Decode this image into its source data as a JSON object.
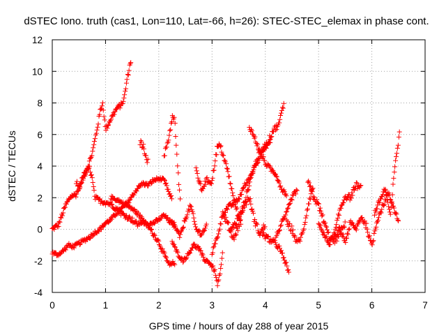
{
  "chart_data": {
    "type": "scatter",
    "title": "dSTEC Iono. truth (cas1, Lon=110, Lat=-66, h=26): STEC-STEC_elemax in phase cont.",
    "xlabel": "GPS time / hours of day 288 of year 2015",
    "ylabel": "dSTEC  / TECUs",
    "xlim": [
      0,
      7
    ],
    "ylim": [
      -4,
      12
    ],
    "xticks": [
      0,
      1,
      2,
      3,
      4,
      5,
      6,
      7
    ],
    "yticks": [
      -4,
      -2,
      0,
      2,
      4,
      6,
      8,
      10,
      12
    ],
    "grid": true,
    "marker": "+",
    "color": "#ff0000",
    "tracks": [
      {
        "start": 0.0,
        "end": 1.48,
        "noise": 0.15,
        "knots": [
          [
            0.0,
            0.0
          ],
          [
            0.12,
            0.3
          ],
          [
            0.25,
            1.5
          ],
          [
            0.35,
            2.1
          ],
          [
            0.45,
            2.2
          ],
          [
            0.55,
            3.0
          ],
          [
            0.65,
            3.8
          ],
          [
            0.75,
            4.8
          ],
          [
            0.85,
            6.5
          ],
          [
            0.9,
            7.5
          ],
          [
            0.95,
            8.0
          ],
          [
            1.0,
            6.3
          ],
          [
            1.1,
            7.0
          ],
          [
            1.2,
            7.6
          ],
          [
            1.3,
            7.9
          ],
          [
            1.35,
            8.3
          ],
          [
            1.4,
            9.4
          ],
          [
            1.45,
            10.3
          ],
          [
            1.48,
            10.7
          ]
        ]
      },
      {
        "start": 0.0,
        "end": 2.25,
        "noise": 0.12,
        "knots": [
          [
            0.0,
            -1.5
          ],
          [
            0.1,
            -1.6
          ],
          [
            0.2,
            -1.4
          ],
          [
            0.3,
            -1.0
          ],
          [
            0.4,
            -1.1
          ],
          [
            0.5,
            -0.9
          ],
          [
            0.6,
            -0.7
          ],
          [
            0.7,
            -0.5
          ],
          [
            0.8,
            -0.2
          ],
          [
            0.9,
            0.0
          ],
          [
            1.0,
            0.4
          ],
          [
            1.1,
            0.6
          ],
          [
            1.2,
            1.0
          ],
          [
            1.3,
            1.3
          ],
          [
            1.4,
            1.6
          ],
          [
            1.5,
            2.1
          ],
          [
            1.6,
            2.6
          ],
          [
            1.7,
            2.9
          ],
          [
            1.8,
            2.8
          ],
          [
            1.9,
            3.1
          ],
          [
            2.0,
            3.2
          ],
          [
            2.1,
            3.1
          ],
          [
            2.15,
            2.7
          ],
          [
            2.2,
            2.2
          ],
          [
            2.25,
            1.9
          ]
        ]
      },
      {
        "start": 0.45,
        "end": 2.3,
        "noise": 0.15,
        "knots": [
          [
            0.45,
            3.0
          ],
          [
            0.5,
            2.6
          ],
          [
            0.6,
            3.5
          ],
          [
            0.7,
            3.9
          ],
          [
            0.75,
            3.2
          ],
          [
            0.8,
            2.0
          ],
          [
            0.9,
            1.8
          ],
          [
            1.0,
            1.7
          ],
          [
            1.1,
            1.6
          ],
          [
            1.2,
            1.3
          ],
          [
            1.3,
            1.0
          ],
          [
            1.4,
            0.8
          ],
          [
            1.5,
            0.6
          ],
          [
            1.6,
            0.3
          ],
          [
            1.7,
            0.5
          ],
          [
            1.8,
            0.2
          ],
          [
            1.9,
            -0.3
          ],
          [
            2.0,
            -0.8
          ],
          [
            2.1,
            -1.6
          ],
          [
            2.2,
            -2.3
          ],
          [
            2.3,
            -2.1
          ]
        ]
      },
      {
        "start": 1.1,
        "end": 2.3,
        "noise": 0.12,
        "knots": [
          [
            1.1,
            2.0
          ],
          [
            1.2,
            1.9
          ],
          [
            1.3,
            1.7
          ],
          [
            1.4,
            1.5
          ],
          [
            1.5,
            1.3
          ],
          [
            1.6,
            1.0
          ],
          [
            1.7,
            0.6
          ],
          [
            1.8,
            0.3
          ],
          [
            1.9,
            0.4
          ],
          [
            2.0,
            0.6
          ],
          [
            2.1,
            0.9
          ],
          [
            2.2,
            0.5
          ],
          [
            2.3,
            0.3
          ]
        ]
      },
      {
        "start": 1.65,
        "end": 1.8,
        "noise": 0.2,
        "knots": [
          [
            1.65,
            5.5
          ],
          [
            1.7,
            5.3
          ],
          [
            1.75,
            4.8
          ],
          [
            1.8,
            4.2
          ]
        ]
      },
      {
        "start": 2.1,
        "end": 2.4,
        "noise": 0.2,
        "knots": [
          [
            2.1,
            4.6
          ],
          [
            2.2,
            6.0
          ],
          [
            2.25,
            7.1
          ],
          [
            2.3,
            6.9
          ],
          [
            2.35,
            4.0
          ],
          [
            2.4,
            2.0
          ]
        ]
      },
      {
        "start": 2.25,
        "end": 3.2,
        "noise": 0.12,
        "knots": [
          [
            2.25,
            -0.8
          ],
          [
            2.35,
            -1.5
          ],
          [
            2.45,
            -2.0
          ],
          [
            2.55,
            -1.6
          ],
          [
            2.65,
            -1.0
          ],
          [
            2.75,
            -1.2
          ],
          [
            2.85,
            -1.9
          ],
          [
            2.95,
            -2.1
          ],
          [
            3.05,
            -2.6
          ],
          [
            3.1,
            -3.5
          ],
          [
            3.15,
            -2.9
          ],
          [
            3.2,
            -1.5
          ]
        ]
      },
      {
        "start": 2.2,
        "end": 2.9,
        "noise": 0.15,
        "knots": [
          [
            2.2,
            0.5
          ],
          [
            2.3,
            0.2
          ],
          [
            2.4,
            -0.5
          ],
          [
            2.5,
            0.7
          ],
          [
            2.6,
            1.5
          ],
          [
            2.7,
            0.0
          ],
          [
            2.8,
            -0.3
          ],
          [
            2.9,
            0.2
          ]
        ]
      },
      {
        "start": 2.7,
        "end": 3.55,
        "noise": 0.18,
        "knots": [
          [
            2.7,
            3.8
          ],
          [
            2.8,
            2.5
          ],
          [
            2.9,
            3.1
          ],
          [
            3.0,
            3.0
          ],
          [
            3.05,
            4.2
          ],
          [
            3.1,
            5.2
          ],
          [
            3.15,
            5.3
          ],
          [
            3.2,
            4.8
          ],
          [
            3.3,
            3.6
          ],
          [
            3.4,
            2.0
          ],
          [
            3.5,
            0.8
          ],
          [
            3.55,
            0.4
          ]
        ]
      },
      {
        "start": 3.0,
        "end": 4.1,
        "noise": 0.15,
        "knots": [
          [
            3.0,
            -1.5
          ],
          [
            3.1,
            -0.5
          ],
          [
            3.2,
            0.9
          ],
          [
            3.3,
            1.4
          ],
          [
            3.4,
            1.6
          ],
          [
            3.5,
            1.9
          ],
          [
            3.6,
            2.7
          ],
          [
            3.7,
            3.2
          ],
          [
            3.8,
            4.0
          ],
          [
            3.9,
            4.6
          ],
          [
            4.0,
            5.2
          ],
          [
            4.1,
            5.6
          ]
        ]
      },
      {
        "start": 3.35,
        "end": 4.35,
        "noise": 0.18,
        "knots": [
          [
            3.35,
            0.0
          ],
          [
            3.45,
            0.4
          ],
          [
            3.55,
            1.1
          ],
          [
            3.65,
            2.2
          ],
          [
            3.75,
            3.5
          ],
          [
            3.85,
            4.5
          ],
          [
            3.95,
            5.1
          ],
          [
            4.05,
            5.5
          ],
          [
            4.15,
            6.3
          ],
          [
            4.25,
            6.6
          ],
          [
            4.3,
            7.3
          ],
          [
            4.35,
            8.0
          ]
        ]
      },
      {
        "start": 3.7,
        "end": 4.4,
        "noise": 0.15,
        "knots": [
          [
            3.7,
            6.5
          ],
          [
            3.8,
            5.8
          ],
          [
            3.9,
            4.9
          ],
          [
            4.0,
            4.2
          ],
          [
            4.1,
            3.8
          ],
          [
            4.2,
            3.5
          ],
          [
            4.3,
            2.6
          ],
          [
            4.4,
            2.2
          ]
        ]
      },
      {
        "start": 3.2,
        "end": 4.0,
        "noise": 0.2,
        "knots": [
          [
            3.2,
            1.0
          ],
          [
            3.3,
            0.3
          ],
          [
            3.4,
            -0.6
          ],
          [
            3.5,
            0.2
          ],
          [
            3.6,
            1.5
          ],
          [
            3.7,
            2.0
          ],
          [
            3.8,
            0.5
          ],
          [
            3.9,
            -0.3
          ],
          [
            4.0,
            0.3
          ]
        ]
      },
      {
        "start": 3.95,
        "end": 4.45,
        "noise": 0.18,
        "knots": [
          [
            3.95,
            -0.3
          ],
          [
            4.05,
            -0.6
          ],
          [
            4.15,
            -0.8
          ],
          [
            4.25,
            -1.1
          ],
          [
            4.35,
            -1.9
          ],
          [
            4.45,
            -2.7
          ]
        ]
      },
      {
        "start": 4.4,
        "end": 4.9,
        "noise": 0.2,
        "knots": [
          [
            4.4,
            0.4
          ],
          [
            4.5,
            0.0
          ],
          [
            4.6,
            -0.9
          ],
          [
            4.7,
            -0.3
          ],
          [
            4.8,
            1.5
          ],
          [
            4.9,
            2.8
          ]
        ]
      },
      {
        "start": 4.2,
        "end": 4.6,
        "noise": 0.15,
        "knots": [
          [
            4.2,
            -0.5
          ],
          [
            4.3,
            0.3
          ],
          [
            4.4,
            1.0
          ],
          [
            4.5,
            2.0
          ],
          [
            4.6,
            2.5
          ]
        ]
      },
      {
        "start": 4.8,
        "end": 5.5,
        "noise": 0.2,
        "knots": [
          [
            4.8,
            3.0
          ],
          [
            4.9,
            2.1
          ],
          [
            5.0,
            1.5
          ],
          [
            5.1,
            0.5
          ],
          [
            5.2,
            -0.5
          ],
          [
            5.3,
            -0.8
          ],
          [
            5.4,
            -0.2
          ],
          [
            5.5,
            0.3
          ]
        ]
      },
      {
        "start": 5.0,
        "end": 5.8,
        "noise": 0.18,
        "knots": [
          [
            5.0,
            0.5
          ],
          [
            5.1,
            -0.4
          ],
          [
            5.2,
            -0.9
          ],
          [
            5.3,
            -0.3
          ],
          [
            5.4,
            1.2
          ],
          [
            5.5,
            2.1
          ],
          [
            5.6,
            2.0
          ],
          [
            5.7,
            2.8
          ],
          [
            5.8,
            2.6
          ]
        ]
      },
      {
        "start": 5.3,
        "end": 6.5,
        "noise": 0.18,
        "knots": [
          [
            5.3,
            -0.5
          ],
          [
            5.4,
            0.0
          ],
          [
            5.5,
            -0.8
          ],
          [
            5.6,
            0.4
          ],
          [
            5.7,
            0.0
          ],
          [
            5.8,
            0.8
          ],
          [
            5.9,
            0.2
          ],
          [
            6.0,
            -1.1
          ],
          [
            6.1,
            0.6
          ],
          [
            6.2,
            1.4
          ],
          [
            6.3,
            2.3
          ],
          [
            6.4,
            1.5
          ],
          [
            6.5,
            0.5
          ]
        ]
      },
      {
        "start": 6.05,
        "end": 6.52,
        "noise": 0.15,
        "knots": [
          [
            6.05,
            1.0
          ],
          [
            6.15,
            1.8
          ],
          [
            6.25,
            2.6
          ],
          [
            6.35,
            0.8
          ],
          [
            6.4,
            2.8
          ],
          [
            6.45,
            4.5
          ],
          [
            6.5,
            5.5
          ],
          [
            6.52,
            6.2
          ]
        ]
      }
    ]
  }
}
